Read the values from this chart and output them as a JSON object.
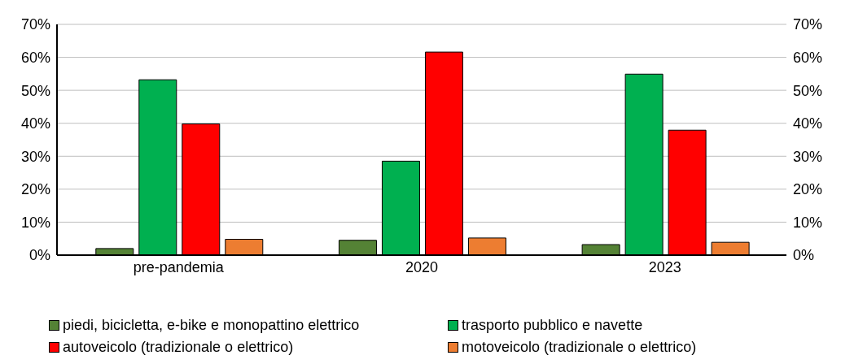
{
  "chart_data": {
    "type": "bar",
    "categories": [
      "pre-pandemia",
      "2020",
      "2023"
    ],
    "series": [
      {
        "name": "piedi, bicicletta, e-bike e monopattino elettrico",
        "color": "#548235",
        "values": [
          2.0,
          4.5,
          3.2
        ]
      },
      {
        "name": "trasporto pubblico e navette",
        "color": "#00b050",
        "values": [
          53.2,
          28.5,
          54.9
        ]
      },
      {
        "name": "autoveicolo (tradizionale o elettrico)",
        "color": "#ff0000",
        "values": [
          39.8,
          61.6,
          37.9
        ]
      },
      {
        "name": "motoveicolo (tradizionale o elettrico)",
        "color": "#ed7d31",
        "values": [
          4.8,
          5.2,
          3.9
        ]
      }
    ],
    "ylim": [
      0,
      70
    ],
    "yticks": [
      {
        "value": 0,
        "label": "0%"
      },
      {
        "value": 10,
        "label": "10%"
      },
      {
        "value": 20,
        "label": "20%"
      },
      {
        "value": 30,
        "label": "30%"
      },
      {
        "value": 40,
        "label": "40%"
      },
      {
        "value": 50,
        "label": "50%"
      },
      {
        "value": 60,
        "label": "60%"
      },
      {
        "value": 70,
        "label": "70%"
      }
    ],
    "y2lim": [
      0,
      70
    ],
    "y2ticks": [
      {
        "value": 0,
        "label": "0%"
      },
      {
        "value": 10,
        "label": "10%"
      },
      {
        "value": 20,
        "label": "20%"
      },
      {
        "value": 30,
        "label": "30%"
      },
      {
        "value": 40,
        "label": "40%"
      },
      {
        "value": 50,
        "label": "50%"
      },
      {
        "value": 60,
        "label": "60%"
      },
      {
        "value": 70,
        "label": "70%"
      }
    ],
    "grid": "y",
    "legend": "bottom"
  }
}
